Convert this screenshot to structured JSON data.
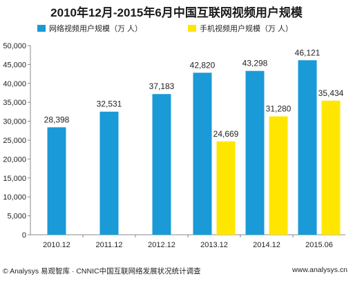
{
  "chart_data": {
    "type": "bar",
    "title": "2010年12月-2015年6月中国互联网视频用户规模",
    "categories": [
      "2010.12",
      "2011.12",
      "2012.12",
      "2013.12",
      "2014.12",
      "2015.06"
    ],
    "series": [
      {
        "name": "网络视频用户规模（万 人）",
        "color": "#1a9ad6",
        "values": [
          28398,
          32531,
          37183,
          42820,
          43298,
          46121
        ],
        "labels": [
          "28,398",
          "32,531",
          "37,183",
          "42,820",
          "43,298",
          "46,121"
        ]
      },
      {
        "name": "手机视频用户规模（万 人）",
        "color": "#ffe600",
        "values": [
          null,
          null,
          null,
          24669,
          31280,
          35434
        ],
        "labels": [
          "",
          "",
          "",
          "24,669",
          "31,280",
          "35,434"
        ]
      }
    ],
    "ylim": [
      0,
      50000
    ],
    "yticks": [
      0,
      5000,
      10000,
      15000,
      20000,
      25000,
      30000,
      35000,
      40000,
      45000,
      50000
    ],
    "ytick_labels": [
      "0",
      "5,000",
      "10,000",
      "15,000",
      "20,000",
      "25,000",
      "30,000",
      "35,000",
      "40,000",
      "45,000",
      "50,000"
    ],
    "grid": false,
    "legend_position": "top-left"
  },
  "footer": {
    "source": "© Analysys 易观智库 · CNNIC中国互联网络发展状况统计调查",
    "website": "www.analysys.cn"
  }
}
